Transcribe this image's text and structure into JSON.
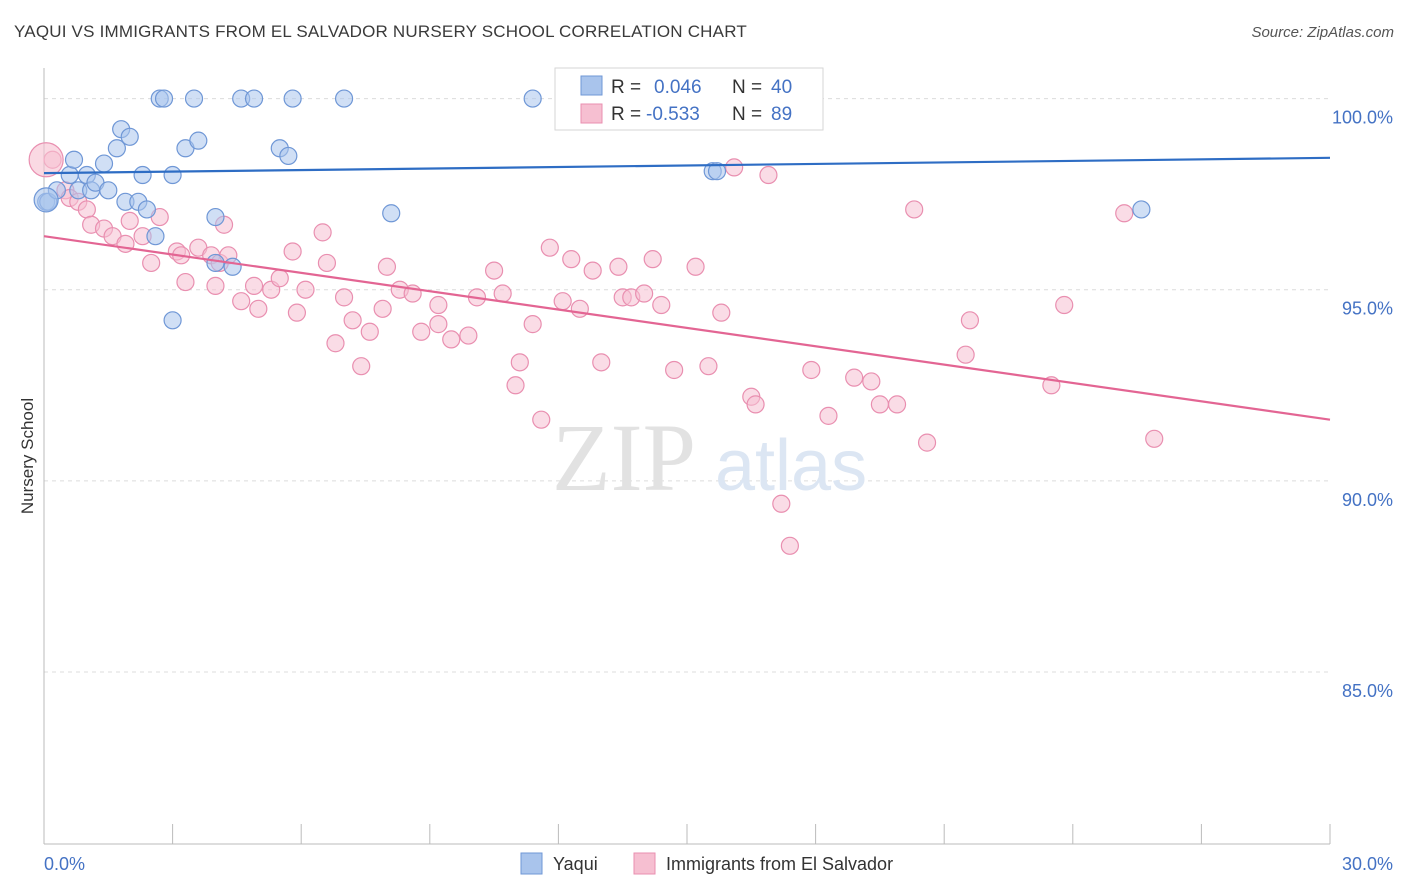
{
  "header": {
    "title": "YAQUI VS IMMIGRANTS FROM EL SALVADOR NURSERY SCHOOL CORRELATION CHART",
    "source": "Source: ZipAtlas.com"
  },
  "watermark": {
    "zip": "ZIP",
    "atlas": "atlas"
  },
  "legend": {
    "series1": {
      "r_label": "R =",
      "r_value": "0.046",
      "n_label": "N =",
      "n_value": "40"
    },
    "series2": {
      "r_label": "R =",
      "r_value": "-0.533",
      "n_label": "N =",
      "n_value": "89"
    }
  },
  "bottom_legend": {
    "series1": "Yaqui",
    "series2": "Immigrants from El Salvador"
  },
  "colors": {
    "series1_fill": "#a9c4ec",
    "series1_stroke": "#6f97d6",
    "series1_line": "#2e6dc4",
    "series2_fill": "#f6bfd1",
    "series2_stroke": "#e98fb0",
    "series2_line": "#e36593",
    "value_text": "#4472c4",
    "grid": "#dcdcdc"
  },
  "chart_data": {
    "type": "scatter",
    "title": "YAQUI VS IMMIGRANTS FROM EL SALVADOR NURSERY SCHOOL CORRELATION CHART",
    "xlabel": "",
    "ylabel": "Nursery School",
    "xlim": [
      0,
      30
    ],
    "ylim": [
      80.5,
      100.8
    ],
    "x_tick_labels": [
      "0.0%",
      "30.0%"
    ],
    "y_ticks": [
      85,
      90,
      95,
      100
    ],
    "y_tick_labels": [
      "85.0%",
      "90.0%",
      "95.0%",
      "100.0%"
    ],
    "grid": true,
    "legend_position": "top-center",
    "series": [
      {
        "name": "Yaqui",
        "r": 0.046,
        "n": 40,
        "trend": {
          "x": [
            0,
            30
          ],
          "y": [
            98.05,
            98.45
          ]
        },
        "points": [
          [
            0.05,
            97.3
          ],
          [
            0.1,
            97.3
          ],
          [
            0.3,
            97.6
          ],
          [
            0.6,
            98.0
          ],
          [
            0.7,
            98.4
          ],
          [
            0.8,
            97.6
          ],
          [
            1.0,
            98.0
          ],
          [
            1.1,
            97.6
          ],
          [
            1.2,
            97.8
          ],
          [
            1.4,
            98.3
          ],
          [
            1.5,
            97.6
          ],
          [
            1.7,
            98.7
          ],
          [
            1.8,
            99.2
          ],
          [
            1.9,
            97.3
          ],
          [
            2.0,
            99.0
          ],
          [
            2.2,
            97.3
          ],
          [
            2.3,
            98.0
          ],
          [
            2.4,
            97.1
          ],
          [
            2.6,
            96.4
          ],
          [
            2.7,
            100.0
          ],
          [
            2.8,
            100.0
          ],
          [
            3.0,
            94.2
          ],
          [
            3.0,
            98.0
          ],
          [
            3.3,
            98.7
          ],
          [
            3.5,
            100.0
          ],
          [
            3.6,
            98.9
          ],
          [
            4.0,
            96.9
          ],
          [
            4.0,
            95.7
          ],
          [
            4.4,
            95.6
          ],
          [
            4.6,
            100.0
          ],
          [
            4.9,
            100.0
          ],
          [
            5.5,
            98.7
          ],
          [
            5.7,
            98.5
          ],
          [
            5.8,
            100.0
          ],
          [
            7.0,
            100.0
          ],
          [
            8.1,
            97.0
          ],
          [
            11.4,
            100.0
          ],
          [
            15.6,
            98.1
          ],
          [
            15.7,
            98.1
          ],
          [
            25.6,
            97.1
          ]
        ]
      },
      {
        "name": "Immigrants from El Salvador",
        "r": -0.533,
        "n": 89,
        "trend": {
          "x": [
            0,
            30
          ],
          "y": [
            96.4,
            91.6
          ]
        },
        "points": [
          [
            0.2,
            98.4
          ],
          [
            0.5,
            97.6
          ],
          [
            0.6,
            97.4
          ],
          [
            0.8,
            97.3
          ],
          [
            1.0,
            97.1
          ],
          [
            1.1,
            96.7
          ],
          [
            1.4,
            96.6
          ],
          [
            1.6,
            96.4
          ],
          [
            1.9,
            96.2
          ],
          [
            2.0,
            96.8
          ],
          [
            2.3,
            96.4
          ],
          [
            2.5,
            95.7
          ],
          [
            2.7,
            96.9
          ],
          [
            3.1,
            96.0
          ],
          [
            3.2,
            95.9
          ],
          [
            3.3,
            95.2
          ],
          [
            3.6,
            96.1
          ],
          [
            3.9,
            95.9
          ],
          [
            4.0,
            95.1
          ],
          [
            4.1,
            95.7
          ],
          [
            4.2,
            96.7
          ],
          [
            4.3,
            95.9
          ],
          [
            4.6,
            94.7
          ],
          [
            4.9,
            95.1
          ],
          [
            5.0,
            94.5
          ],
          [
            5.3,
            95.0
          ],
          [
            5.5,
            95.3
          ],
          [
            5.8,
            96.0
          ],
          [
            5.9,
            94.4
          ],
          [
            6.1,
            95.0
          ],
          [
            6.5,
            96.5
          ],
          [
            6.6,
            95.7
          ],
          [
            6.8,
            93.6
          ],
          [
            7.0,
            94.8
          ],
          [
            7.2,
            94.2
          ],
          [
            7.4,
            93.0
          ],
          [
            7.6,
            93.9
          ],
          [
            7.9,
            94.5
          ],
          [
            8.0,
            95.6
          ],
          [
            8.3,
            95.0
          ],
          [
            8.6,
            94.9
          ],
          [
            8.8,
            93.9
          ],
          [
            9.2,
            94.1
          ],
          [
            9.2,
            94.6
          ],
          [
            9.5,
            93.7
          ],
          [
            9.9,
            93.8
          ],
          [
            10.1,
            94.8
          ],
          [
            10.5,
            95.5
          ],
          [
            10.7,
            94.9
          ],
          [
            11.0,
            92.5
          ],
          [
            11.1,
            93.1
          ],
          [
            11.4,
            94.1
          ],
          [
            11.6,
            91.6
          ],
          [
            11.8,
            96.1
          ],
          [
            12.1,
            94.7
          ],
          [
            12.3,
            95.8
          ],
          [
            12.5,
            94.5
          ],
          [
            12.8,
            95.5
          ],
          [
            13.0,
            93.1
          ],
          [
            13.4,
            95.6
          ],
          [
            13.5,
            94.8
          ],
          [
            13.7,
            94.8
          ],
          [
            14.0,
            94.9
          ],
          [
            14.2,
            95.8
          ],
          [
            14.4,
            94.6
          ],
          [
            14.7,
            92.9
          ],
          [
            15.2,
            95.6
          ],
          [
            15.5,
            93.0
          ],
          [
            15.8,
            94.4
          ],
          [
            16.1,
            98.2
          ],
          [
            16.5,
            92.2
          ],
          [
            16.6,
            92.0
          ],
          [
            16.9,
            98.0
          ],
          [
            17.2,
            89.4
          ],
          [
            17.4,
            88.3
          ],
          [
            17.9,
            92.9
          ],
          [
            18.3,
            91.7
          ],
          [
            18.9,
            92.7
          ],
          [
            19.3,
            92.6
          ],
          [
            19.5,
            92.0
          ],
          [
            19.9,
            92.0
          ],
          [
            20.3,
            97.1
          ],
          [
            20.6,
            91.0
          ],
          [
            21.5,
            93.3
          ],
          [
            21.6,
            94.2
          ],
          [
            23.5,
            92.5
          ],
          [
            23.8,
            94.6
          ],
          [
            25.2,
            97.0
          ],
          [
            25.9,
            91.1
          ]
        ]
      }
    ]
  }
}
